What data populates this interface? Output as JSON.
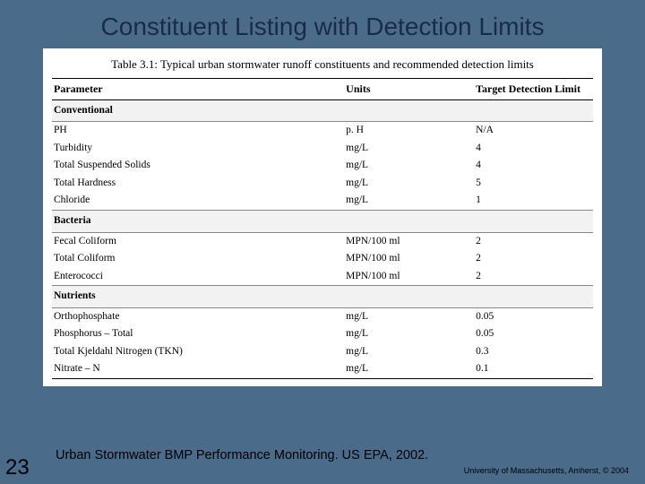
{
  "slide": {
    "title": "Constituent Listing with Detection Limits",
    "number": "23",
    "caption": "Urban Stormwater BMP Performance Monitoring. US EPA, 2002.",
    "copyright": "University of Massachusetts, Amherst, © 2004"
  },
  "table": {
    "caption": "Table 3.1:  Typical urban stormwater runoff constituents and recommended detection limits",
    "headers": {
      "param": "Parameter",
      "units": "Units",
      "limit": "Target Detection Limit"
    },
    "sections": [
      {
        "name": "Conventional",
        "rows": [
          {
            "param": "PH",
            "units": "p. H",
            "limit": "N/A"
          },
          {
            "param": "Turbidity",
            "units": "mg/L",
            "limit": "4"
          },
          {
            "param": "Total Suspended Solids",
            "units": "mg/L",
            "limit": "4"
          },
          {
            "param": "Total Hardness",
            "units": "mg/L",
            "limit": "5"
          },
          {
            "param": "Chloride",
            "units": "mg/L",
            "limit": "1"
          }
        ]
      },
      {
        "name": "Bacteria",
        "rows": [
          {
            "param": "Fecal Coliform",
            "units": "MPN/100 ml",
            "limit": "2"
          },
          {
            "param": "Total Coliform",
            "units": "MPN/100 ml",
            "limit": "2"
          },
          {
            "param": "Enterococci",
            "units": "MPN/100 ml",
            "limit": "2"
          }
        ]
      },
      {
        "name": "Nutrients",
        "rows": [
          {
            "param": "Orthophosphate",
            "units": "mg/L",
            "limit": "0.05"
          },
          {
            "param": "Phosphorus – Total",
            "units": "mg/L",
            "limit": "0.05"
          },
          {
            "param": "Total Kjeldahl Nitrogen (TKN)",
            "units": "mg/L",
            "limit": "0.3"
          },
          {
            "param": "Nitrate – N",
            "units": "mg/L",
            "limit": "0.1"
          }
        ]
      }
    ]
  }
}
